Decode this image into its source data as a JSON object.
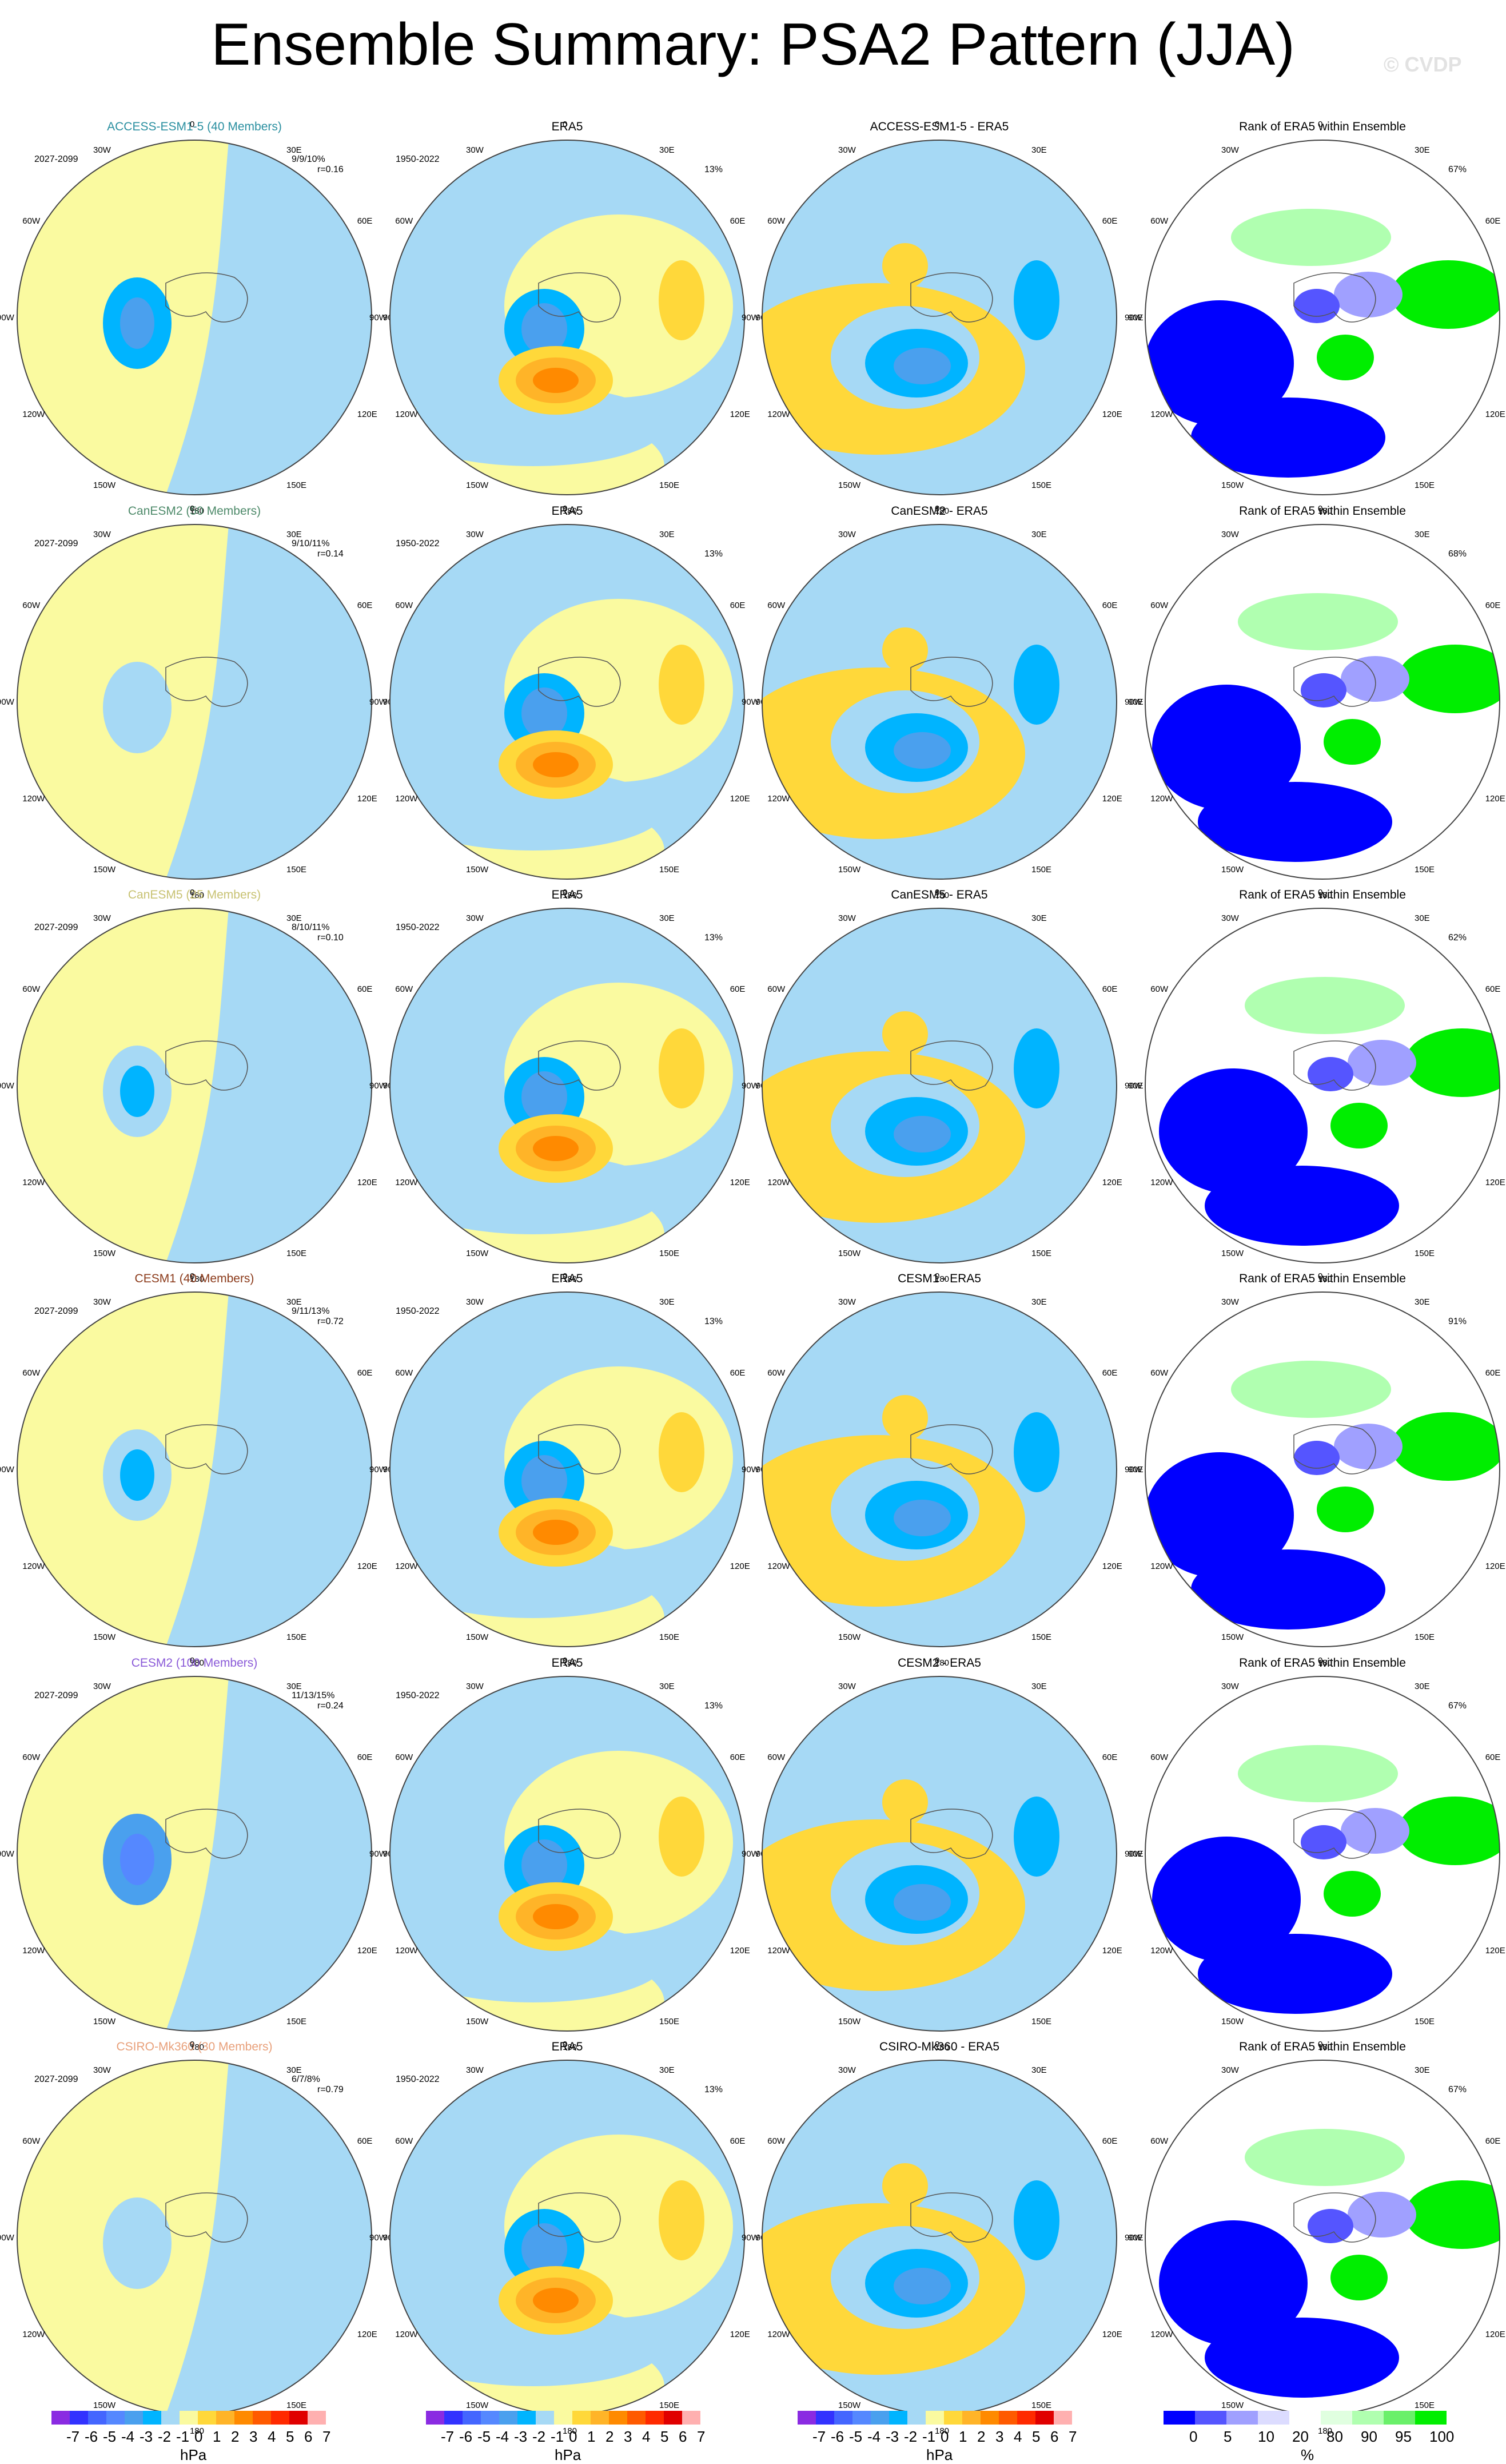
{
  "page": {
    "title": "Ensemble Summary: PSA2 Pattern (JJA)",
    "watermark": "© CVDP"
  },
  "lon_labels": [
    "0",
    "30E",
    "60E",
    "90E",
    "120E",
    "150E",
    "180",
    "150W",
    "120W",
    "90W",
    "60W",
    "30W"
  ],
  "colors": {
    "diverging": [
      "#8a2be2",
      "#3232ff",
      "#4466ff",
      "#5588ff",
      "#4aa0ee",
      "#00b4ff",
      "#a6d9f5",
      "#fafaa0",
      "#ffd83a",
      "#ffb428",
      "#ff8a00",
      "#ff5a00",
      "#ff2a00",
      "#e00000",
      "#ffb0b0"
    ],
    "rank": [
      "#0000ff",
      "#5555ff",
      "#a0a0ff",
      "#dcdcff",
      "#ffffff",
      "#e0ffe0",
      "#b0ffb0",
      "#6af06a",
      "#00ee00"
    ]
  },
  "chart_data": [
    {
      "row": 0,
      "type": "heatmap",
      "model": "ACCESS-ESM1-5 (40 Members)",
      "model_color": "#2a8fa0",
      "period": "2027-2099",
      "stats": "9/9/10%",
      "corr": "r=0.16",
      "era_title": "ERA5",
      "era_period": "1950-2022",
      "era_pct": "13%",
      "diff_title": "ACCESS-ESM1-5 - ERA5",
      "rank_title": "Rank of ERA5 within Ensemble",
      "rank_pct": "67%",
      "model_anom": -3
    },
    {
      "row": 1,
      "type": "heatmap",
      "model": "CanESM2 (50 Members)",
      "model_color": "#4e8a6a",
      "period": "2027-2099",
      "stats": "9/10/11%",
      "corr": "r=0.14",
      "era_title": "ERA5",
      "era_period": "1950-2022",
      "era_pct": "13%",
      "diff_title": "CanESM2 - ERA5",
      "rank_title": "Rank of ERA5 within Ensemble",
      "rank_pct": "68%",
      "model_anom": -1
    },
    {
      "row": 2,
      "type": "heatmap",
      "model": "CanESM5 (25 Members)",
      "model_color": "#c8c272",
      "period": "2027-2099",
      "stats": "8/10/11%",
      "corr": "r=0.10",
      "era_title": "ERA5",
      "era_period": "1950-2022",
      "era_pct": "13%",
      "diff_title": "CanESM5 - ERA5",
      "rank_title": "Rank of ERA5 within Ensemble",
      "rank_pct": "62%",
      "model_anom": -2
    },
    {
      "row": 3,
      "type": "heatmap",
      "model": "CESM1 (40 Members)",
      "model_color": "#8b3a1a",
      "period": "2027-2099",
      "stats": "9/11/13%",
      "corr": "r=0.72",
      "era_title": "ERA5",
      "era_period": "1950-2022",
      "era_pct": "13%",
      "diff_title": "CESM1 - ERA5",
      "rank_title": "Rank of ERA5 within Ensemble",
      "rank_pct": "91%",
      "model_anom": -2
    },
    {
      "row": 4,
      "type": "heatmap",
      "model": "CESM2 (100 Members)",
      "model_color": "#8a5ad8",
      "period": "2027-2099",
      "stats": "11/13/15%",
      "corr": "r=0.24",
      "era_title": "ERA5",
      "era_period": "1950-2022",
      "era_pct": "13%",
      "diff_title": "CESM2 - ERA5",
      "rank_title": "Rank of ERA5 within Ensemble",
      "rank_pct": "67%",
      "model_anom": -4
    },
    {
      "row": 5,
      "type": "heatmap",
      "model": "CSIRO-Mk360 (30 Members)",
      "model_color": "#e8a07a",
      "period": "2027-2099",
      "stats": "6/7/8%",
      "corr": "r=0.79",
      "era_title": "ERA5",
      "era_period": "1950-2022",
      "era_pct": "13%",
      "diff_title": "CSIRO-Mk360 - ERA5",
      "rank_title": "Rank of ERA5 within Ensemble",
      "rank_pct": "67%",
      "model_anom": -1
    }
  ],
  "colorbars": {
    "anom": {
      "ticks": [
        "-7",
        "-6",
        "-5",
        "-4",
        "-3",
        "-2",
        "-1",
        "0",
        "1",
        "2",
        "3",
        "4",
        "5",
        "6",
        "7"
      ],
      "units": "hPa"
    },
    "rank": {
      "ticks": [
        "0",
        "5",
        "10",
        "20",
        "80",
        "90",
        "95",
        "100"
      ],
      "units": "%"
    }
  }
}
